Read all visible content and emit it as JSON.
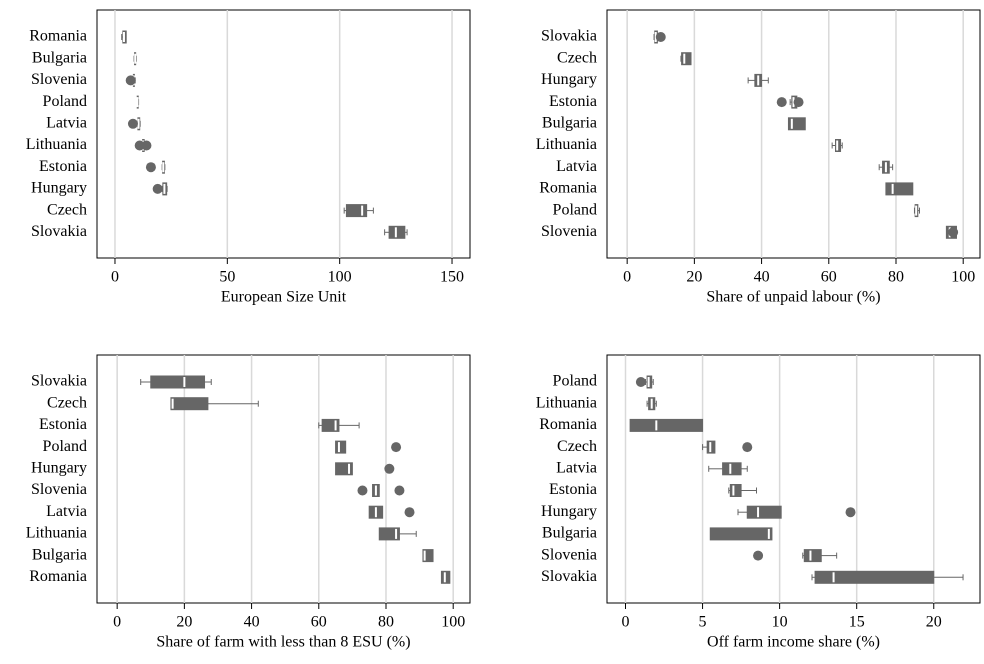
{
  "chart_data": [
    {
      "type": "box",
      "xlabel": "European Size Unit",
      "color": "#666666",
      "grid": true,
      "categories": [
        "Romania",
        "Bulgaria",
        "Slovenia",
        "Poland",
        "Latvia",
        "Lithuania",
        "Estonia",
        "Hungary",
        "Czech",
        "Slovakia"
      ],
      "boxes": [
        {
          "min": 3,
          "q1": 3.5,
          "median": 4,
          "q3": 5,
          "max": 5,
          "outliers": []
        },
        {
          "min": 8.5,
          "q1": 8.7,
          "median": 9,
          "q3": 9.2,
          "max": 9.5,
          "outliers": []
        },
        {
          "min": 8,
          "q1": 8.2,
          "median": 8.4,
          "q3": 8.6,
          "max": 9,
          "outliers": [
            7
          ]
        },
        {
          "min": 9.8,
          "q1": 9.9,
          "median": 10,
          "q3": 10.3,
          "max": 10.5,
          "outliers": []
        },
        {
          "min": 10,
          "q1": 10.2,
          "median": 10.5,
          "q3": 11,
          "max": 11.2,
          "outliers": [
            8
          ]
        },
        {
          "min": 12,
          "q1": 12.3,
          "median": 12.5,
          "q3": 13,
          "max": 13.5,
          "outliers": [
            11,
            14
          ]
        },
        {
          "min": 21,
          "q1": 21.2,
          "median": 21.5,
          "q3": 22,
          "max": 22.2,
          "outliers": [
            16
          ]
        },
        {
          "min": 21,
          "q1": 21.3,
          "median": 22,
          "q3": 23,
          "max": 23.2,
          "outliers": [
            19
          ]
        },
        {
          "min": 102,
          "q1": 103,
          "median": 110,
          "q3": 112,
          "max": 115,
          "outliers": []
        },
        {
          "min": 120,
          "q1": 122,
          "median": 125,
          "q3": 129,
          "max": 130,
          "outliers": []
        }
      ],
      "xlim": [
        -8,
        158
      ],
      "xticks": [
        0,
        50,
        100,
        150
      ]
    },
    {
      "type": "box",
      "xlabel": "Share of unpaid labour (%)",
      "color": "#666666",
      "grid": true,
      "categories": [
        "Slovakia",
        "Czech",
        "Hungary",
        "Estonia",
        "Bulgaria",
        "Lithuania",
        "Latvia",
        "Romania",
        "Poland",
        "Slovenia"
      ],
      "boxes": [
        {
          "min": 8,
          "q1": 8.2,
          "median": 8.5,
          "q3": 9,
          "max": 9,
          "outliers": [
            10
          ]
        },
        {
          "min": 16,
          "q1": 16.2,
          "median": 17,
          "q3": 19,
          "max": 19,
          "outliers": []
        },
        {
          "min": 36,
          "q1": 38,
          "median": 39,
          "q3": 40,
          "max": 42,
          "outliers": []
        },
        {
          "min": 48.5,
          "q1": 49,
          "median": 49.5,
          "q3": 50.5,
          "max": 51,
          "outliers": [
            46,
            51
          ]
        },
        {
          "min": 48,
          "q1": 48,
          "median": 49,
          "q3": 53,
          "max": 53,
          "outliers": []
        },
        {
          "min": 61,
          "q1": 62,
          "median": 62.5,
          "q3": 63.5,
          "max": 64,
          "outliers": []
        },
        {
          "min": 75,
          "q1": 76,
          "median": 77,
          "q3": 78,
          "max": 79,
          "outliers": []
        },
        {
          "min": 77,
          "q1": 77,
          "median": 79,
          "q3": 85,
          "max": 85,
          "outliers": []
        },
        {
          "min": 85.5,
          "q1": 85.7,
          "median": 86,
          "q3": 86.5,
          "max": 87,
          "outliers": []
        },
        {
          "min": 95,
          "q1": 95,
          "median": 96,
          "q3": 98,
          "max": 98,
          "outliers": [
            97
          ]
        }
      ],
      "xlim": [
        -6,
        105
      ],
      "xticks": [
        0,
        20,
        40,
        60,
        80,
        100
      ]
    },
    {
      "type": "box",
      "xlabel": "Share of farm with less than 8 ESU (%)",
      "color": "#666666",
      "grid": true,
      "categories": [
        "Slovakia",
        "Czech",
        "Estonia",
        "Poland",
        "Hungary",
        "Slovenia",
        "Latvia",
        "Lithuania",
        "Bulgaria",
        "Romania"
      ],
      "boxes": [
        {
          "min": 7,
          "q1": 10,
          "median": 20,
          "q3": 26,
          "max": 28,
          "outliers": []
        },
        {
          "min": 16,
          "q1": 16,
          "median": 16.5,
          "q3": 27,
          "max": 42,
          "outliers": []
        },
        {
          "min": 60,
          "q1": 61,
          "median": 65,
          "q3": 66,
          "max": 72,
          "outliers": []
        },
        {
          "min": 65,
          "q1": 65,
          "median": 66,
          "q3": 68,
          "max": 68,
          "outliers": [
            83
          ]
        },
        {
          "min": 65,
          "q1": 65,
          "median": 69,
          "q3": 70,
          "max": 70,
          "outliers": [
            81
          ]
        },
        {
          "min": 76,
          "q1": 76,
          "median": 77,
          "q3": 78,
          "max": 78,
          "outliers": [
            73,
            84
          ]
        },
        {
          "min": 75,
          "q1": 75,
          "median": 77,
          "q3": 79,
          "max": 79,
          "outliers": [
            87
          ]
        },
        {
          "min": 78,
          "q1": 78,
          "median": 83,
          "q3": 84,
          "max": 89,
          "outliers": []
        },
        {
          "min": 91,
          "q1": 91,
          "median": 91.5,
          "q3": 94,
          "max": 94,
          "outliers": []
        },
        {
          "min": 96.5,
          "q1": 96.5,
          "median": 97.5,
          "q3": 99,
          "max": 99,
          "outliers": []
        }
      ],
      "xlim": [
        -6,
        105
      ],
      "xticks": [
        0,
        20,
        40,
        60,
        80,
        100
      ]
    },
    {
      "type": "box",
      "xlabel": "Off farm income share (%)",
      "color": "#666666",
      "grid": true,
      "categories": [
        "Poland",
        "Lithuania",
        "Romania",
        "Czech",
        "Latvia",
        "Estonia",
        "Hungary",
        "Bulgaria",
        "Slovenia",
        "Slovakia"
      ],
      "boxes": [
        {
          "min": 1.3,
          "q1": 1.4,
          "median": 1.5,
          "q3": 1.7,
          "max": 1.8,
          "outliers": [
            1.0
          ]
        },
        {
          "min": 1.4,
          "q1": 1.5,
          "median": 1.7,
          "q3": 1.9,
          "max": 2.0,
          "outliers": []
        },
        {
          "min": 0.3,
          "q1": 0.3,
          "median": 2,
          "q3": 5,
          "max": 5,
          "outliers": []
        },
        {
          "min": 5.0,
          "q1": 5.3,
          "median": 5.5,
          "q3": 5.8,
          "max": 5.8,
          "outliers": [
            7.9
          ]
        },
        {
          "min": 5.4,
          "q1": 6.3,
          "median": 6.8,
          "q3": 7.5,
          "max": 7.9,
          "outliers": []
        },
        {
          "min": 6.7,
          "q1": 6.8,
          "median": 7.0,
          "q3": 7.5,
          "max": 8.5,
          "outliers": []
        },
        {
          "min": 7.3,
          "q1": 7.9,
          "median": 8.6,
          "q3": 10.1,
          "max": 10.1,
          "outliers": [
            14.6
          ]
        },
        {
          "min": 5.5,
          "q1": 5.5,
          "median": 9.3,
          "q3": 9.5,
          "max": 9.5,
          "outliers": []
        },
        {
          "min": 11.5,
          "q1": 11.6,
          "median": 12.0,
          "q3": 12.7,
          "max": 13.7,
          "outliers": [
            8.6
          ]
        },
        {
          "min": 12.1,
          "q1": 12.3,
          "median": 13.5,
          "q3": 20,
          "max": 21.9,
          "outliers": []
        }
      ],
      "xlim": [
        -1.2,
        23
      ],
      "xticks": [
        0,
        5,
        10,
        15,
        20
      ]
    }
  ]
}
